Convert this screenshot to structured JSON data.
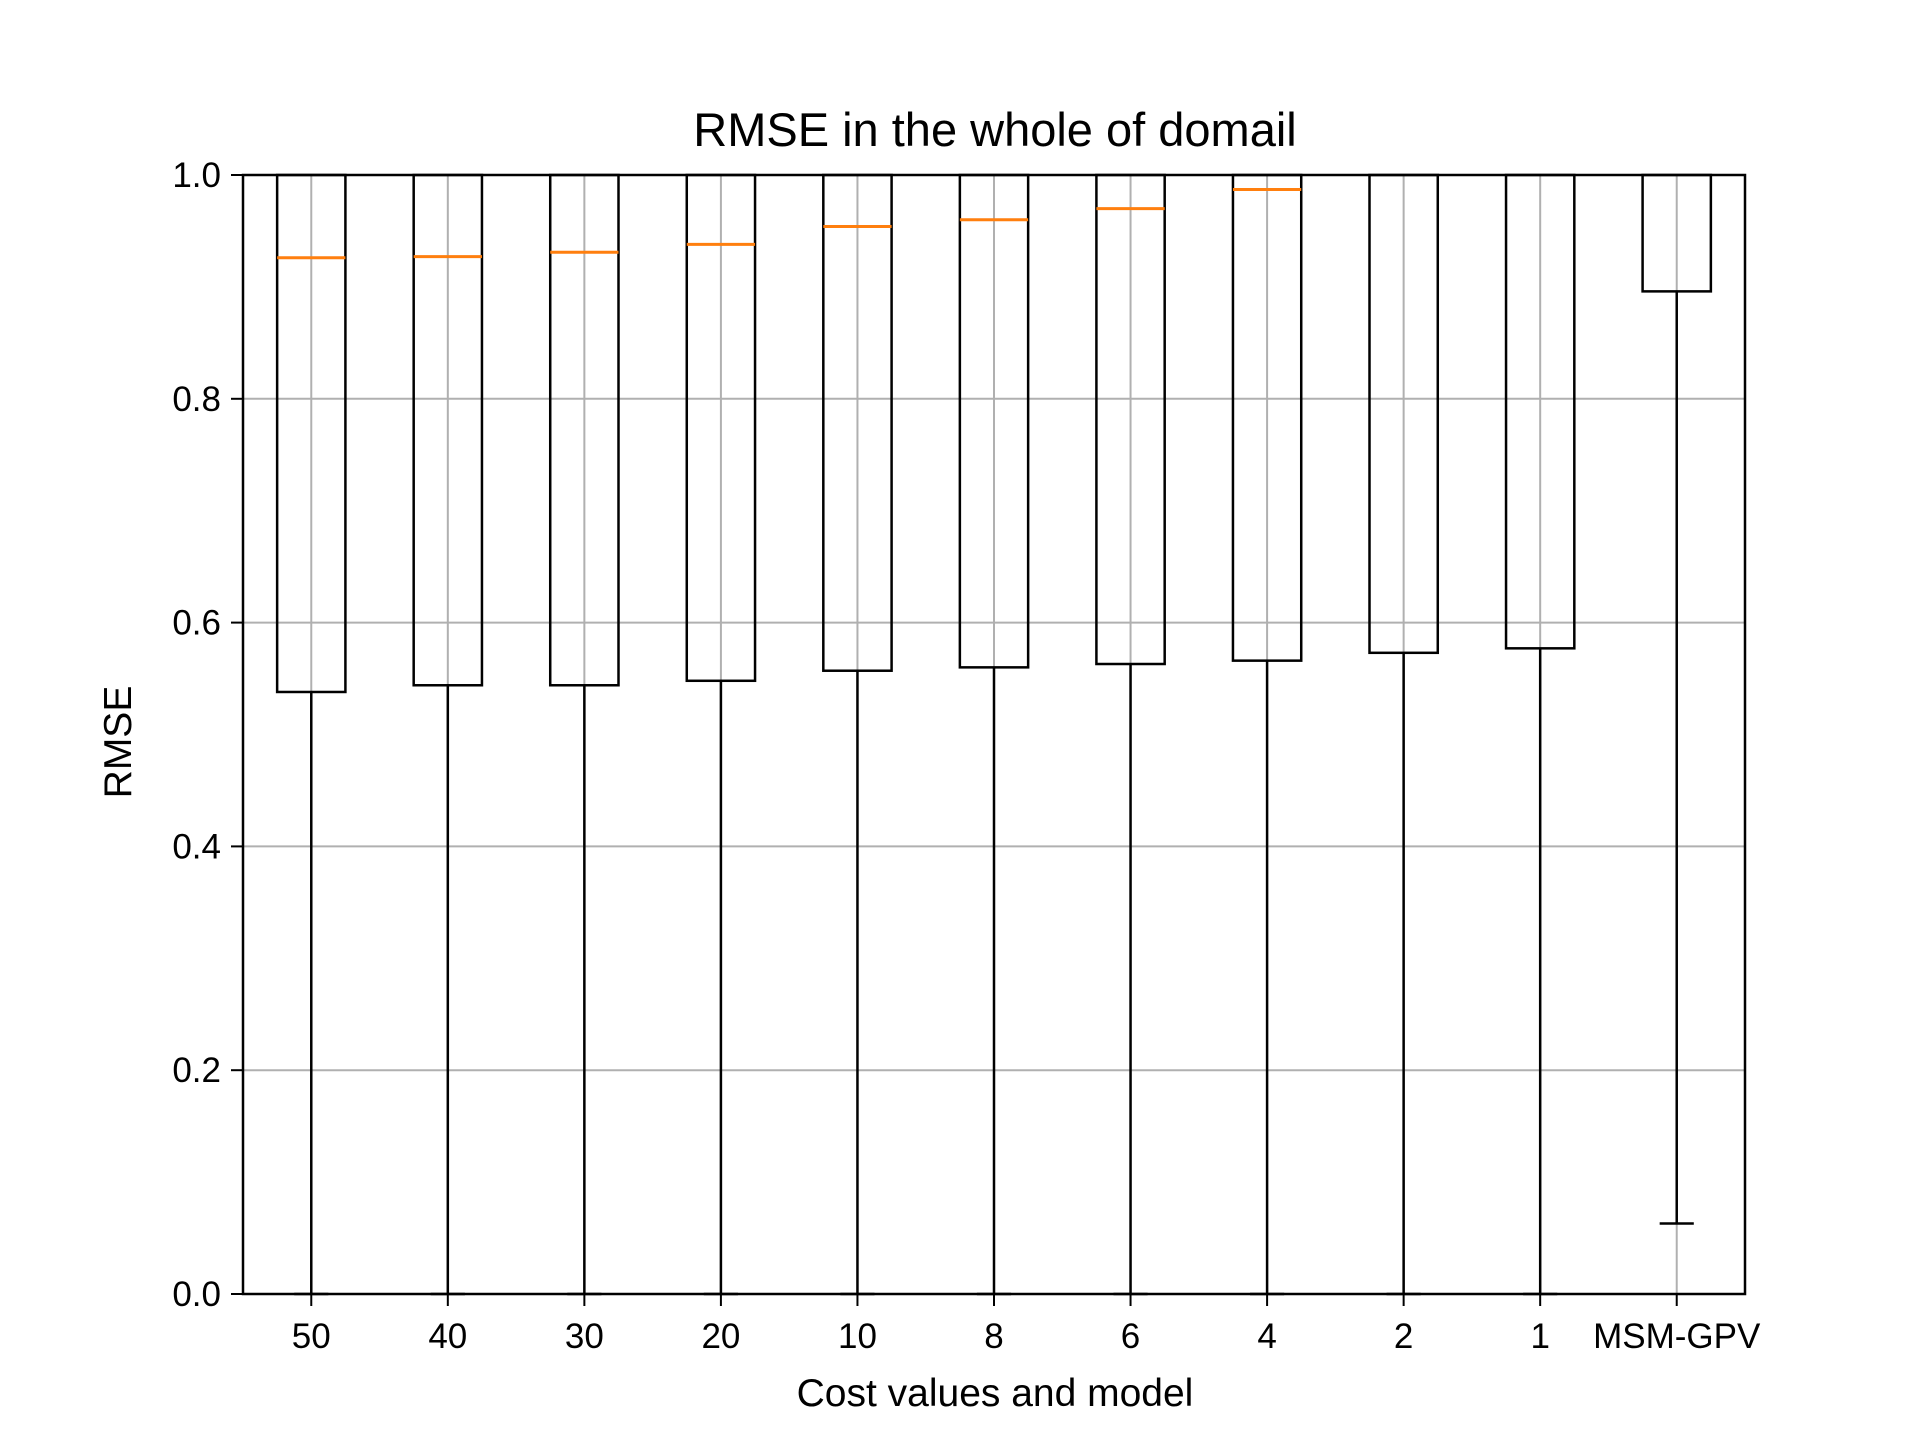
{
  "chart_data": {
    "type": "box",
    "title": "RMSE in the whole of domail",
    "xlabel": "Cost values and model",
    "ylabel": "RMSE",
    "ylim": [
      0,
      1.0
    ],
    "yticks": [
      0.0,
      0.2,
      0.4,
      0.6,
      0.8,
      1.0
    ],
    "ytick_labels": [
      "0.0",
      "0.2",
      "0.4",
      "0.6",
      "0.8",
      "1.0"
    ],
    "grid": true,
    "categories": [
      "50",
      "40",
      "30",
      "20",
      "10",
      "8",
      "6",
      "4",
      "2",
      "1",
      "MSM-GPV"
    ],
    "boxes": [
      {
        "label": "50",
        "whisker_low": 0.0,
        "q1": 0.538,
        "median": 0.926,
        "q3": 1.0
      },
      {
        "label": "40",
        "whisker_low": 0.0,
        "q1": 0.544,
        "median": 0.927,
        "q3": 1.0
      },
      {
        "label": "30",
        "whisker_low": 0.0,
        "q1": 0.544,
        "median": 0.931,
        "q3": 1.0
      },
      {
        "label": "20",
        "whisker_low": 0.0,
        "q1": 0.548,
        "median": 0.938,
        "q3": 1.0
      },
      {
        "label": "10",
        "whisker_low": 0.0,
        "q1": 0.557,
        "median": 0.954,
        "q3": 1.0
      },
      {
        "label": "8",
        "whisker_low": 0.0,
        "q1": 0.56,
        "median": 0.96,
        "q3": 1.0
      },
      {
        "label": "6",
        "whisker_low": 0.0,
        "q1": 0.563,
        "median": 0.97,
        "q3": 1.0
      },
      {
        "label": "4",
        "whisker_low": 0.0,
        "q1": 0.566,
        "median": 0.987,
        "q3": 1.0
      },
      {
        "label": "2",
        "whisker_low": 0.0,
        "q1": 0.573,
        "median": 1.0,
        "q3": 1.0
      },
      {
        "label": "1",
        "whisker_low": 0.0,
        "q1": 0.577,
        "median": 1.0,
        "q3": 1.0
      },
      {
        "label": "MSM-GPV",
        "whisker_low": 0.063,
        "q1": 0.896,
        "median": 1.0,
        "q3": 1.0
      }
    ],
    "colors": {
      "box": "#000000",
      "median": "#ff7f0e",
      "grid": "#b0b0b0",
      "axes": "#000000"
    }
  }
}
